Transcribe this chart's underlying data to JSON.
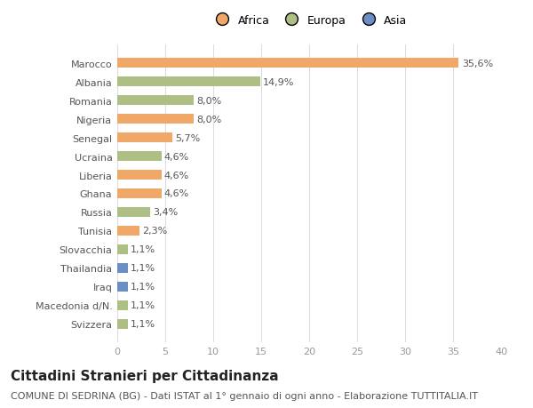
{
  "categories": [
    "Marocco",
    "Albania",
    "Romania",
    "Nigeria",
    "Senegal",
    "Ucraina",
    "Liberia",
    "Ghana",
    "Russia",
    "Tunisia",
    "Slovacchia",
    "Thailandia",
    "Iraq",
    "Macedonia d/N.",
    "Svizzera"
  ],
  "values": [
    35.6,
    14.9,
    8.0,
    8.0,
    5.7,
    4.6,
    4.6,
    4.6,
    3.4,
    2.3,
    1.1,
    1.1,
    1.1,
    1.1,
    1.1
  ],
  "labels": [
    "35,6%",
    "14,9%",
    "8,0%",
    "8,0%",
    "5,7%",
    "4,6%",
    "4,6%",
    "4,6%",
    "3,4%",
    "2,3%",
    "1,1%",
    "1,1%",
    "1,1%",
    "1,1%",
    "1,1%"
  ],
  "continents": [
    "Africa",
    "Europa",
    "Europa",
    "Africa",
    "Africa",
    "Europa",
    "Africa",
    "Africa",
    "Europa",
    "Africa",
    "Europa",
    "Asia",
    "Asia",
    "Europa",
    "Europa"
  ],
  "colors": {
    "Africa": "#F0A868",
    "Europa": "#ADBF85",
    "Asia": "#6B8EC4"
  },
  "legend_order": [
    "Africa",
    "Europa",
    "Asia"
  ],
  "xlim": [
    0,
    40
  ],
  "xticks": [
    0,
    5,
    10,
    15,
    20,
    25,
    30,
    35,
    40
  ],
  "title": "Cittadini Stranieri per Cittadinanza",
  "subtitle": "COMUNE DI SEDRINA (BG) - Dati ISTAT al 1° gennaio di ogni anno - Elaborazione TUTTITALIA.IT",
  "bg_color": "#ffffff",
  "grid_color": "#dddddd",
  "bar_height": 0.55,
  "title_fontsize": 11,
  "subtitle_fontsize": 8,
  "label_fontsize": 8,
  "tick_fontsize": 8,
  "legend_fontsize": 9
}
